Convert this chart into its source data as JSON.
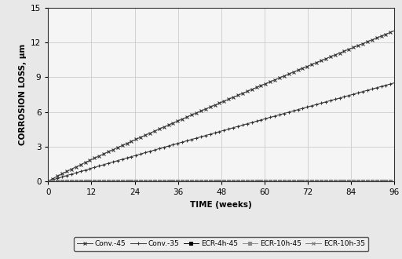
{
  "title": "",
  "xlabel": "TIME (weeks)",
  "ylabel": "CORROSION LOSS, µm",
  "xlim": [
    0,
    96
  ],
  "ylim": [
    0,
    15
  ],
  "xticks": [
    0,
    12,
    24,
    36,
    48,
    60,
    72,
    84,
    96
  ],
  "yticks": [
    0,
    3,
    6,
    9,
    12,
    15
  ],
  "series": [
    {
      "label": "Conv.-45",
      "end_value": 13.0,
      "power": 0.93,
      "marker": "x",
      "color": "#333333",
      "ms": 3.5,
      "mew": 0.8
    },
    {
      "label": "Conv.-35",
      "end_value": 8.5,
      "power": 0.97,
      "marker": "+",
      "color": "#333333",
      "ms": 3.5,
      "mew": 0.8
    },
    {
      "label": "ECR-4h-45",
      "end_value": 0.0,
      "power": 1.0,
      "marker": "s",
      "color": "#000000",
      "ms": 2.5,
      "mew": 0.8
    },
    {
      "label": "ECR-10h-45",
      "end_value": 0.0,
      "power": 1.0,
      "marker": "s",
      "color": "#888888",
      "ms": 2.5,
      "mew": 0.8
    },
    {
      "label": "ECR-10h-35",
      "end_value": 0.0,
      "power": 1.0,
      "marker": "x",
      "color": "#777777",
      "ms": 3.5,
      "mew": 0.8
    }
  ],
  "background_color": "#e8e8e8",
  "plot_bg_color": "#f5f5f5",
  "grid_color": "#cccccc",
  "legend_fontsize": 6.5,
  "axis_label_fontsize": 7.5,
  "tick_fontsize": 7.5,
  "n_points": 300,
  "marker_every": 4
}
